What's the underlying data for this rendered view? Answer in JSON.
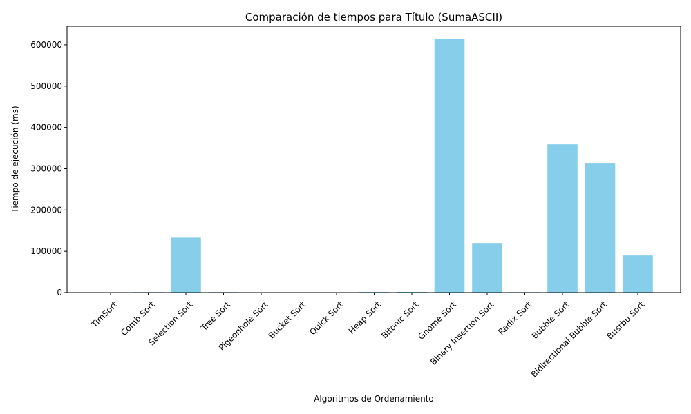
{
  "chart_data": {
    "type": "bar",
    "title": "Comparación de tiempos para Título (SumaASCII)",
    "xlabel": "Algoritmos de Ordenamiento",
    "ylabel": "Tiempo de ejecución (ms)",
    "ylim": [
      0,
      645000
    ],
    "yticks": [
      0,
      100000,
      200000,
      300000,
      400000,
      500000,
      600000
    ],
    "bar_color": "#87ceeb",
    "categories": [
      "TimSort",
      "Comb Sort",
      "Selection Sort",
      "Tree Sort",
      "Pigeonhole Sort",
      "Bucket Sort",
      "Quick Sort",
      "Heap Sort",
      "Bitonic Sort",
      "Gnome Sort",
      "Binary Insertion Sort",
      "Radix Sort",
      "Bubble Sort",
      "Bidirectional Bubble Sort",
      "Busrbu Sort"
    ],
    "values": [
      150,
      1200,
      133000,
      1300,
      150,
      300,
      400,
      1500,
      1700,
      615000,
      120000,
      1200,
      359000,
      314000,
      90000
    ]
  }
}
